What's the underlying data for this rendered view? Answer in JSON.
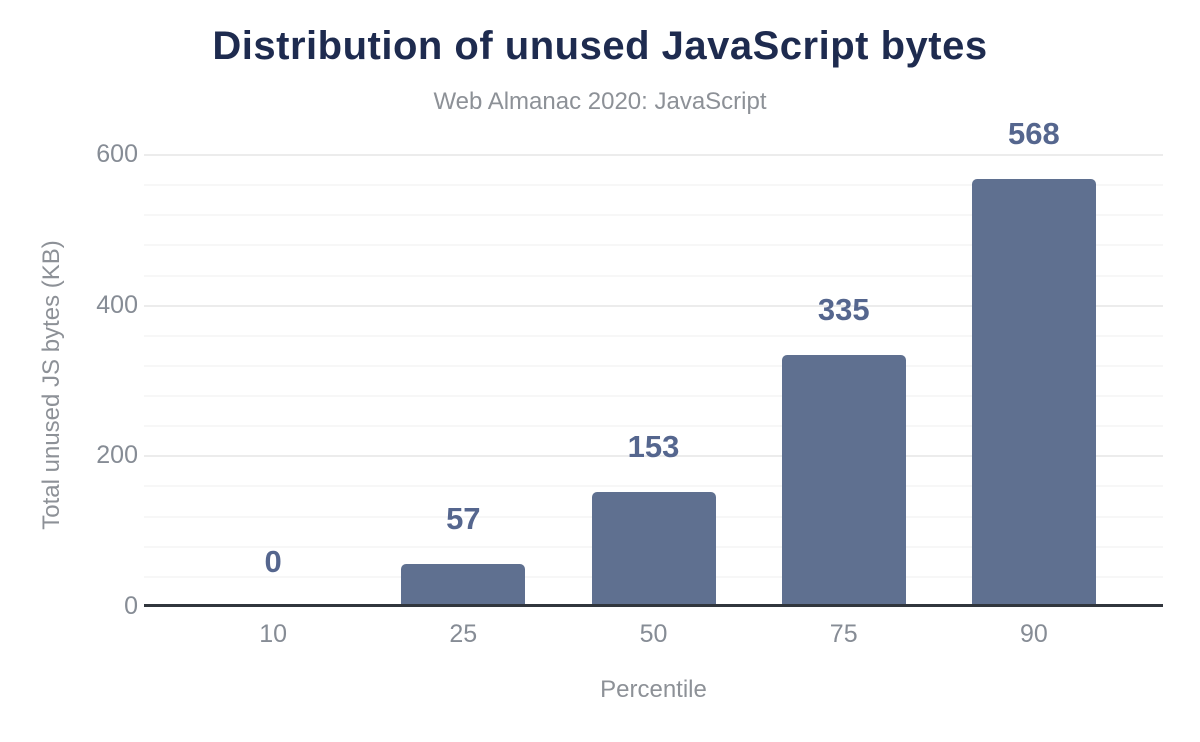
{
  "chart_data": {
    "type": "bar",
    "title": "Distribution of unused JavaScript bytes",
    "subtitle": "Web Almanac 2020: JavaScript",
    "xlabel": "Percentile",
    "ylabel": "Total unused JS bytes (KB)",
    "categories": [
      "10",
      "25",
      "50",
      "75",
      "90"
    ],
    "values": [
      0,
      57,
      153,
      335,
      568
    ],
    "value_labels": [
      "0",
      "57",
      "153",
      "335",
      "568"
    ],
    "ylim": [
      0,
      600
    ],
    "yticks": [
      0,
      200,
      400,
      600
    ],
    "ytick_labels": [
      "0",
      "200",
      "400",
      "600"
    ],
    "ytick_step_minor": 40,
    "ytick_step_major": 200,
    "grid": true,
    "legend": "none",
    "colors": {
      "bar": "#5f7090",
      "value_label": "#55668e",
      "title": "#1e2b4f",
      "subtitle": "#8d9197",
      "axis_text": "#8d9197",
      "tick_text": "#868c95",
      "axis_line": "#31363d",
      "gridline_major": "#ececec",
      "gridline_minor": "#f7f7f7",
      "background": "#ffffff"
    }
  }
}
